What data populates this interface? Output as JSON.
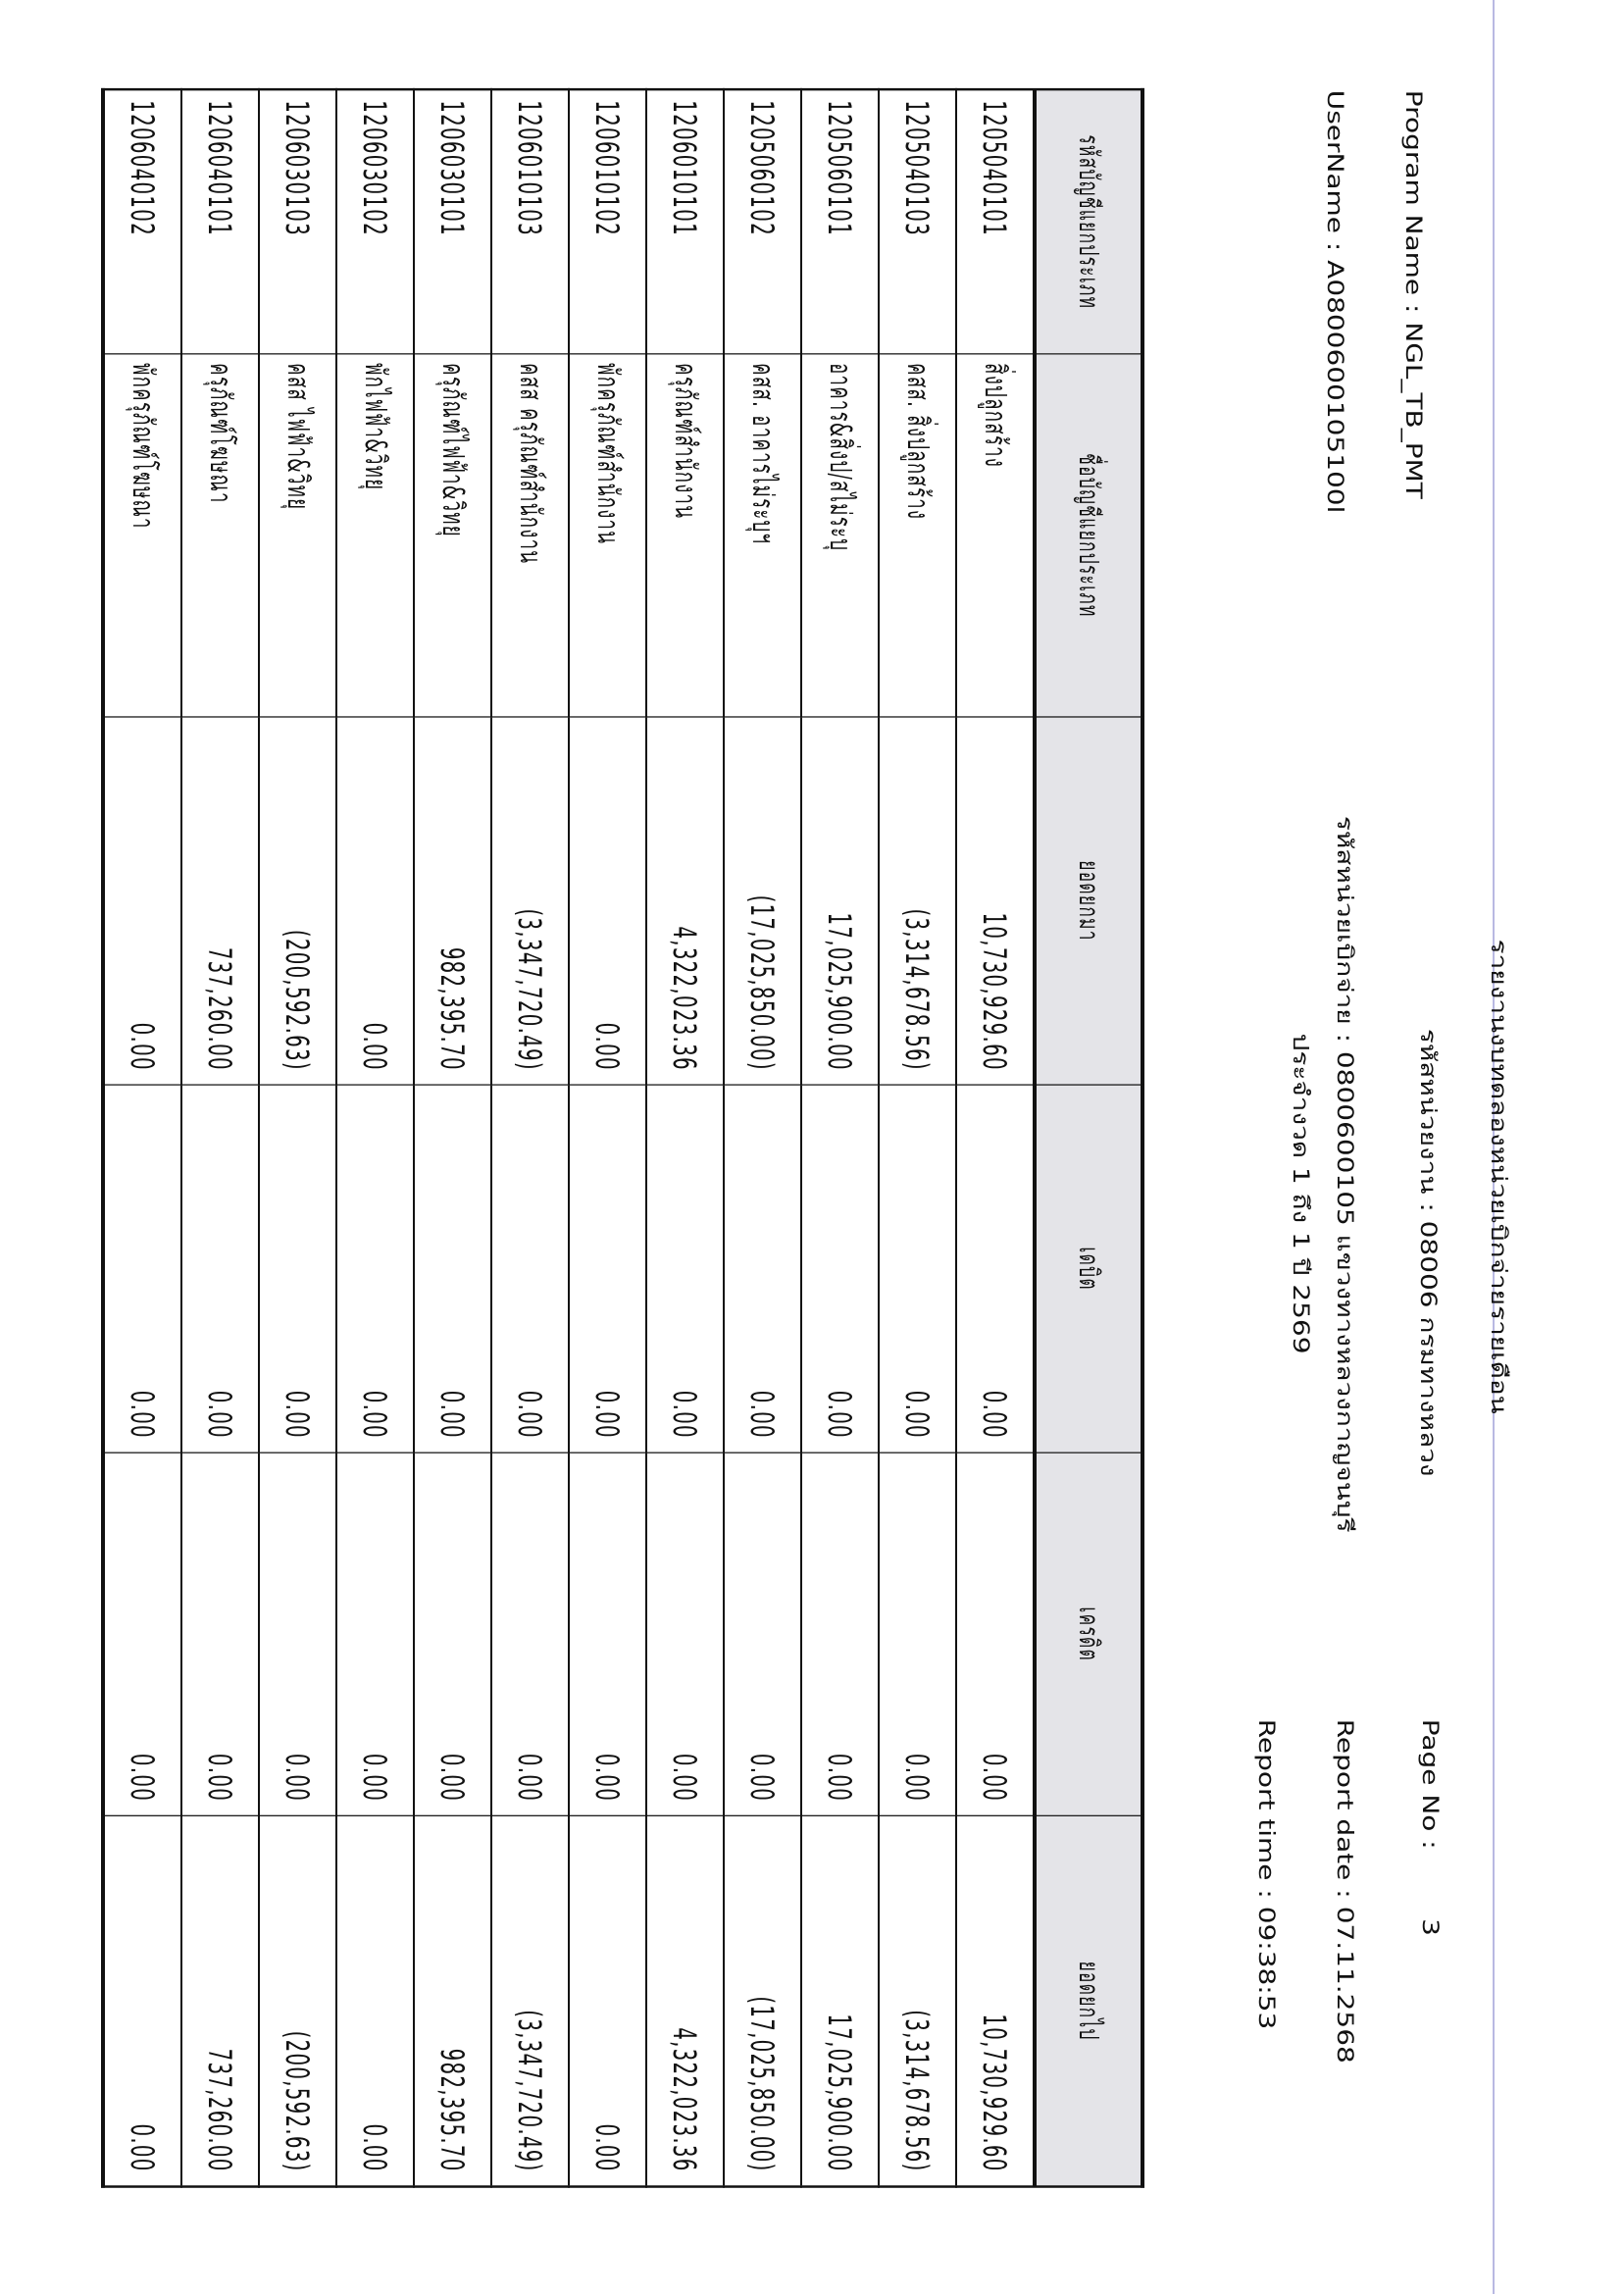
{
  "header": {
    "title": "รายงานงบทดลองหน่วยเบิกจ่ายรายเดือน",
    "agency": "รหัสหน่วยงาน : 08006 กรมทางหลวง",
    "disbursement_unit": "รหัสหน่วยเบิกจ่าย : 0800600105 แขวงทางหลวงกาญจนบุรี",
    "period": "ประจำงวด 1 ถึง 1 ปี 2569",
    "program_name": "Program Name : NGL_TB_PMT",
    "user_name": "UserName : A0800600105100l",
    "page_no_label": "Page No :",
    "page_no": "3",
    "report_date_label": "Report date :",
    "report_date": "07.11.2568",
    "report_time_label": "Report time :",
    "report_time": "09:38:53"
  },
  "table": {
    "columns": [
      "รหัสบัญชีแยกประเภท",
      "ชื่อบัญชีแยกประเภท",
      "ยอดยกมา",
      "เดบิต",
      "เครดิต",
      "ยอดยกไป"
    ],
    "rows": [
      [
        "1205040101",
        "สิ่งปลูกสร้าง",
        "10,730,929.60",
        "0.00",
        "0.00",
        "10,730,929.60"
      ],
      [
        "1205040103",
        "คสส. สิ่งปลูกสร้าง",
        "(3,314,678.56)",
        "0.00",
        "0.00",
        "(3,314,678.56)"
      ],
      [
        "1205060101",
        "อาคาร&สิ่งป/สไม่ระบุ",
        "17,025,900.00",
        "0.00",
        "0.00",
        "17,025,900.00"
      ],
      [
        "1205060102",
        "คสส. อาคารไม่ระบุฯ",
        "(17,025,850.00)",
        "0.00",
        "0.00",
        "(17,025,850.00)"
      ],
      [
        "1206010101",
        "ครุภัณฑ์สำนักงาน",
        "4,322,023.36",
        "0.00",
        "0.00",
        "4,322,023.36"
      ],
      [
        "1206010102",
        "พักครุภัณฑ์สำนักงาน",
        "0.00",
        "0.00",
        "0.00",
        "0.00"
      ],
      [
        "1206010103",
        "คสส ครุภัณฑ์สำนักงาน",
        "(3,347,720.49)",
        "0.00",
        "0.00",
        "(3,347,720.49)"
      ],
      [
        "1206030101",
        "ครุภัณฑ์ไฟฟ้า&วิทยุ",
        "982,395.70",
        "0.00",
        "0.00",
        "982,395.70"
      ],
      [
        "1206030102",
        "พักไฟฟ้า&วิทยุ",
        "0.00",
        "0.00",
        "0.00",
        "0.00"
      ],
      [
        "1206030103",
        "คสส ไฟฟ้า&วิทยุ",
        "(200,592.63)",
        "0.00",
        "0.00",
        "(200,592.63)"
      ],
      [
        "1206040101",
        "ครุภัณฑ์โฆษณา",
        "737,260.00",
        "0.00",
        "0.00",
        "737,260.00"
      ],
      [
        "1206040102",
        "พักครุภัณฑ์โฆษณา",
        "0.00",
        "0.00",
        "0.00",
        "0.00"
      ]
    ]
  }
}
